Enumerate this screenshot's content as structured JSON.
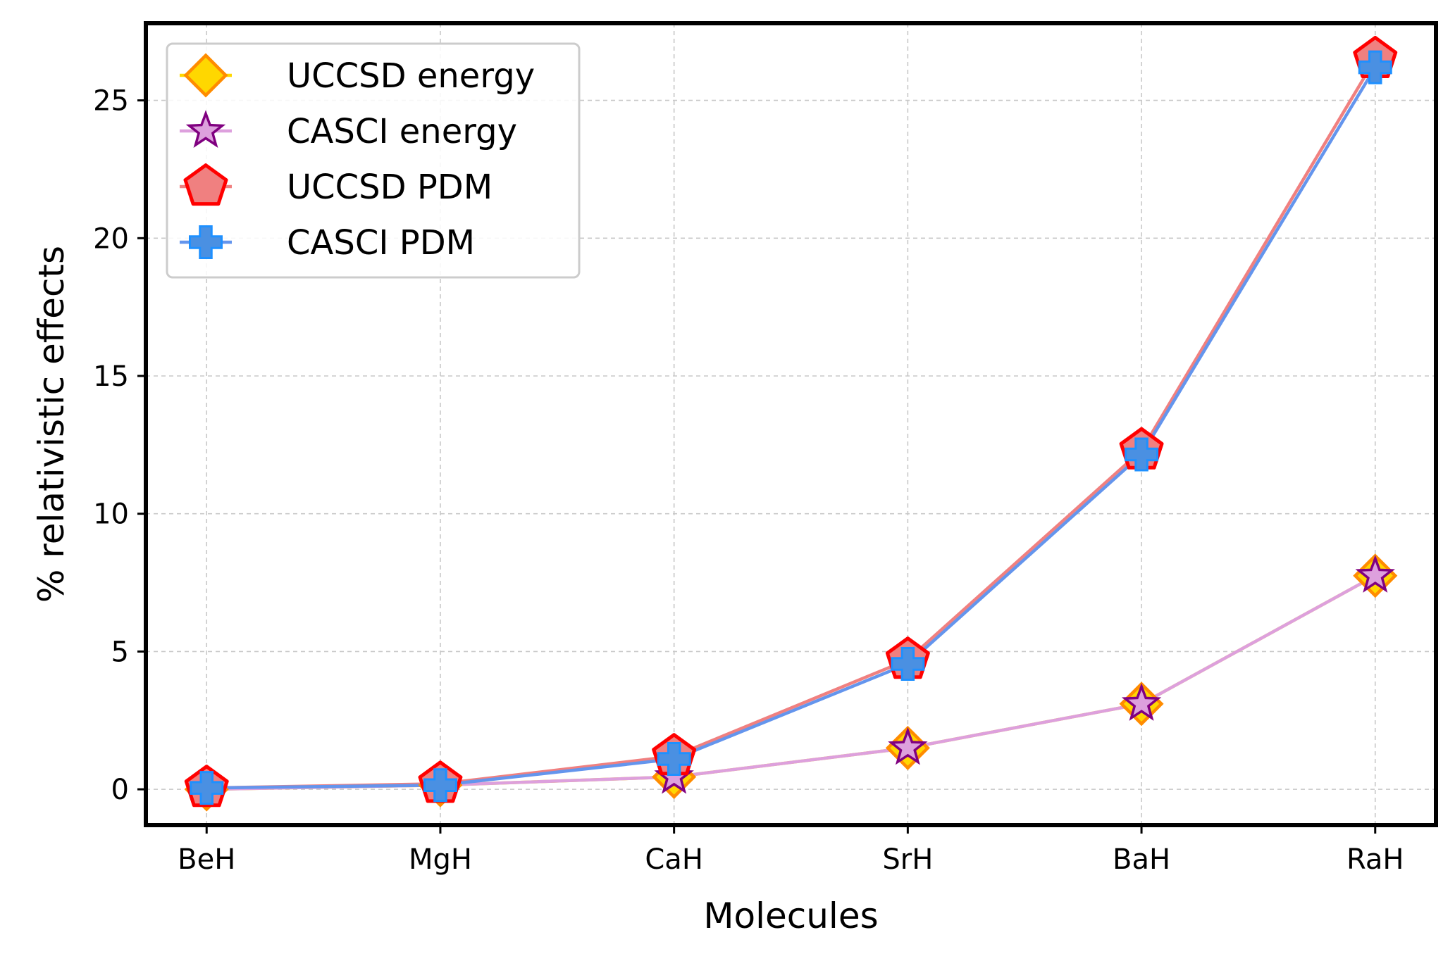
{
  "chart_data": {
    "type": "line",
    "title": "",
    "xlabel": "Molecules",
    "ylabel": "% relativistic effects",
    "categories": [
      "BeH",
      "MgH",
      "CaH",
      "SrH",
      "BaH",
      "RaH"
    ],
    "ylim": [
      -1.3,
      27.8
    ],
    "yticks": [
      0,
      5,
      10,
      15,
      20,
      25
    ],
    "grid": true,
    "legend_position": "top-left",
    "series": [
      {
        "name": "UCCSD energy",
        "values": [
          0.0,
          0.15,
          0.45,
          1.5,
          3.1,
          7.75
        ],
        "line_color": "#FFD700",
        "marker": "diamond",
        "marker_fill": "#FFD700",
        "marker_edge": "#FF8C00"
      },
      {
        "name": "CASCI energy",
        "values": [
          0.0,
          0.15,
          0.45,
          1.5,
          3.1,
          7.75
        ],
        "line_color": "#DDA0DD",
        "marker": "star",
        "marker_fill": "#DDA0DD",
        "marker_edge": "#800080"
      },
      {
        "name": "UCCSD PDM",
        "values": [
          0.05,
          0.2,
          1.2,
          4.7,
          12.3,
          26.5
        ],
        "line_color": "#F08080",
        "marker": "pentagon",
        "marker_fill": "#F08080",
        "marker_edge": "#FF0000"
      },
      {
        "name": "CASCI PDM",
        "values": [
          0.05,
          0.15,
          1.1,
          4.55,
          12.15,
          26.2
        ],
        "line_color": "#6495ED",
        "marker": "plus",
        "marker_fill": "#4A90E2",
        "marker_edge": "#1E90FF"
      }
    ]
  }
}
